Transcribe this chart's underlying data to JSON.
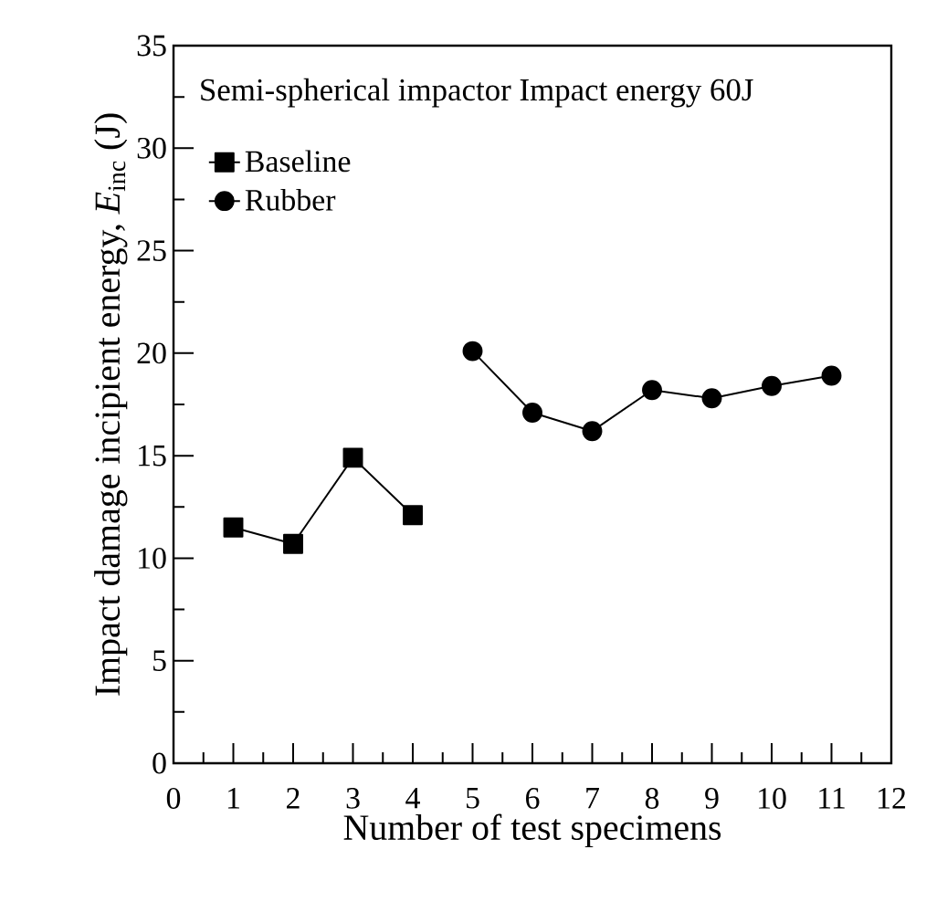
{
  "chart_data": {
    "type": "line",
    "xlabel": "Number of test specimens",
    "ylabel": "Impact damage incipient energy, *E*$_{inc}$ (J)",
    "annotations": [
      "Semi-spherical impactor  Impact energy 60J"
    ],
    "series": [
      {
        "name": "Baseline",
        "color": "#000000",
        "marker": "square",
        "x": [
          1,
          2,
          3,
          4
        ],
        "values": [
          11.5,
          10.7,
          14.9,
          12.1
        ]
      },
      {
        "name": "Rubber",
        "color": "#000000",
        "marker": "circle",
        "x": [
          5,
          6,
          7,
          8,
          9,
          10,
          11
        ],
        "values": [
          20.1,
          17.1,
          16.2,
          18.2,
          17.8,
          18.4,
          18.9
        ]
      }
    ],
    "xlim": [
      0,
      12
    ],
    "ylim": [
      0,
      35
    ],
    "xticks": [
      0,
      1,
      2,
      3,
      4,
      5,
      6,
      7,
      8,
      9,
      10,
      11,
      12
    ],
    "yticks": [
      0,
      5,
      10,
      15,
      20,
      25,
      30,
      35
    ],
    "legend": "top left",
    "grid": false,
    "line_style": "solid"
  }
}
